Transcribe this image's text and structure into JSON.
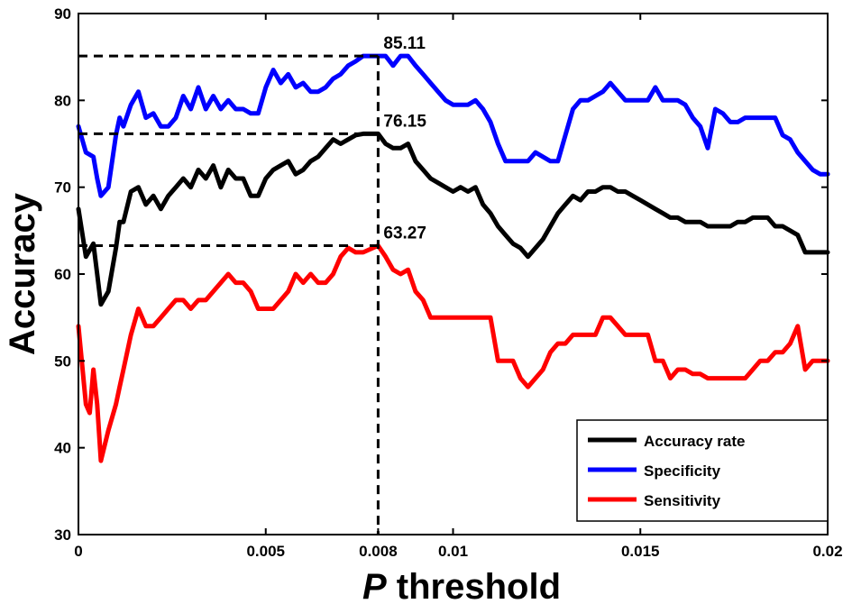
{
  "chart_data": {
    "type": "line",
    "xlabel_italic": "P",
    "xlabel_rest": " threshold",
    "ylabel": "Accuracy",
    "xlim": [
      0,
      0.02
    ],
    "ylim": [
      30,
      90
    ],
    "x_ticks": [
      0,
      0.005,
      0.008,
      0.01,
      0.015,
      0.02
    ],
    "x_tick_labels": [
      "0",
      "0.005",
      "0.008",
      "0.01",
      "0.015",
      "0.02"
    ],
    "y_ticks": [
      30,
      40,
      50,
      60,
      70,
      80,
      90
    ],
    "y_tick_labels": [
      "30",
      "40",
      "50",
      "60",
      "70",
      "80",
      "90"
    ],
    "grid": false,
    "legend_position": "bottom-right",
    "annotations": [
      {
        "text": "85.11",
        "x": 0.008,
        "y": 85.11
      },
      {
        "text": "76.15",
        "x": 0.008,
        "y": 76.15
      },
      {
        "text": "63.27",
        "x": 0.008,
        "y": 63.27
      }
    ],
    "series": [
      {
        "name": "Accuracy rate",
        "color": "#000000",
        "points": [
          [
            0,
            67.5
          ],
          [
            0.0002,
            62
          ],
          [
            0.0004,
            63.5
          ],
          [
            0.0005,
            60
          ],
          [
            0.0006,
            56.5
          ],
          [
            0.0008,
            58
          ],
          [
            0.001,
            63
          ],
          [
            0.0011,
            66
          ],
          [
            0.0012,
            66
          ],
          [
            0.0014,
            69.5
          ],
          [
            0.0016,
            70
          ],
          [
            0.0018,
            68
          ],
          [
            0.002,
            69
          ],
          [
            0.0022,
            67.5
          ],
          [
            0.0024,
            69
          ],
          [
            0.0026,
            70
          ],
          [
            0.0028,
            71
          ],
          [
            0.003,
            70
          ],
          [
            0.0032,
            72
          ],
          [
            0.0034,
            71
          ],
          [
            0.0036,
            72.5
          ],
          [
            0.0038,
            70
          ],
          [
            0.004,
            72
          ],
          [
            0.0042,
            71
          ],
          [
            0.0044,
            71
          ],
          [
            0.0046,
            69
          ],
          [
            0.0048,
            69
          ],
          [
            0.005,
            71
          ],
          [
            0.0052,
            72
          ],
          [
            0.0054,
            72.5
          ],
          [
            0.0056,
            73
          ],
          [
            0.0058,
            71.5
          ],
          [
            0.006,
            72
          ],
          [
            0.0062,
            73
          ],
          [
            0.0064,
            73.5
          ],
          [
            0.0066,
            74.5
          ],
          [
            0.0068,
            75.5
          ],
          [
            0.007,
            75
          ],
          [
            0.0072,
            75.5
          ],
          [
            0.0074,
            76
          ],
          [
            0.0076,
            76.15
          ],
          [
            0.008,
            76.15
          ],
          [
            0.0082,
            75
          ],
          [
            0.0084,
            74.5
          ],
          [
            0.0086,
            74.5
          ],
          [
            0.0088,
            75
          ],
          [
            0.009,
            73
          ],
          [
            0.0092,
            72
          ],
          [
            0.0094,
            71
          ],
          [
            0.0096,
            70.5
          ],
          [
            0.0098,
            70
          ],
          [
            0.01,
            69.5
          ],
          [
            0.0102,
            70
          ],
          [
            0.0104,
            69.5
          ],
          [
            0.0106,
            70
          ],
          [
            0.0108,
            68
          ],
          [
            0.011,
            67
          ],
          [
            0.0112,
            65.5
          ],
          [
            0.0114,
            64.5
          ],
          [
            0.0116,
            63.5
          ],
          [
            0.0118,
            63
          ],
          [
            0.012,
            62
          ],
          [
            0.0122,
            63
          ],
          [
            0.0124,
            64
          ],
          [
            0.0126,
            65.5
          ],
          [
            0.0128,
            67
          ],
          [
            0.013,
            68
          ],
          [
            0.0132,
            69
          ],
          [
            0.0134,
            68.5
          ],
          [
            0.0136,
            69.5
          ],
          [
            0.0138,
            69.5
          ],
          [
            0.014,
            70
          ],
          [
            0.0142,
            70
          ],
          [
            0.0144,
            69.5
          ],
          [
            0.0146,
            69.5
          ],
          [
            0.0148,
            69
          ],
          [
            0.015,
            68.5
          ],
          [
            0.0152,
            68
          ],
          [
            0.0154,
            67.5
          ],
          [
            0.0156,
            67
          ],
          [
            0.0158,
            66.5
          ],
          [
            0.016,
            66.5
          ],
          [
            0.0162,
            66
          ],
          [
            0.0164,
            66
          ],
          [
            0.0166,
            66
          ],
          [
            0.0168,
            65.5
          ],
          [
            0.017,
            65.5
          ],
          [
            0.0172,
            65.5
          ],
          [
            0.0174,
            65.5
          ],
          [
            0.0176,
            66
          ],
          [
            0.0178,
            66
          ],
          [
            0.018,
            66.5
          ],
          [
            0.0182,
            66.5
          ],
          [
            0.0184,
            66.5
          ],
          [
            0.0186,
            65.5
          ],
          [
            0.0188,
            65.5
          ],
          [
            0.019,
            65
          ],
          [
            0.0192,
            64.5
          ],
          [
            0.0194,
            62.5
          ],
          [
            0.0196,
            62.5
          ],
          [
            0.0198,
            62.5
          ],
          [
            0.02,
            62.5
          ]
        ]
      },
      {
        "name": "Specificity",
        "color": "#0000ff",
        "points": [
          [
            0,
            77
          ],
          [
            0.0002,
            74
          ],
          [
            0.0004,
            73.5
          ],
          [
            0.0005,
            71
          ],
          [
            0.0006,
            69
          ],
          [
            0.0008,
            70
          ],
          [
            0.001,
            76
          ],
          [
            0.0011,
            78
          ],
          [
            0.0012,
            77
          ],
          [
            0.0014,
            79.5
          ],
          [
            0.0016,
            81
          ],
          [
            0.0018,
            78
          ],
          [
            0.002,
            78.5
          ],
          [
            0.0022,
            77
          ],
          [
            0.0024,
            77
          ],
          [
            0.0026,
            78
          ],
          [
            0.0028,
            80.5
          ],
          [
            0.003,
            79
          ],
          [
            0.0032,
            81.5
          ],
          [
            0.0034,
            79
          ],
          [
            0.0036,
            80.5
          ],
          [
            0.0038,
            79
          ],
          [
            0.004,
            80
          ],
          [
            0.0042,
            79
          ],
          [
            0.0044,
            79
          ],
          [
            0.0046,
            78.5
          ],
          [
            0.0048,
            78.5
          ],
          [
            0.005,
            81.5
          ],
          [
            0.0052,
            83.5
          ],
          [
            0.0054,
            82
          ],
          [
            0.0056,
            83
          ],
          [
            0.0058,
            81.5
          ],
          [
            0.006,
            82
          ],
          [
            0.0062,
            81
          ],
          [
            0.0064,
            81
          ],
          [
            0.0066,
            81.5
          ],
          [
            0.0068,
            82.5
          ],
          [
            0.007,
            83
          ],
          [
            0.0072,
            84
          ],
          [
            0.0074,
            84.5
          ],
          [
            0.0076,
            85.11
          ],
          [
            0.008,
            85.11
          ],
          [
            0.0082,
            85.11
          ],
          [
            0.0084,
            84
          ],
          [
            0.0086,
            85.11
          ],
          [
            0.0088,
            85.11
          ],
          [
            0.009,
            84
          ],
          [
            0.0092,
            83
          ],
          [
            0.0094,
            82
          ],
          [
            0.0096,
            81
          ],
          [
            0.0098,
            80
          ],
          [
            0.01,
            79.5
          ],
          [
            0.0102,
            79.5
          ],
          [
            0.0104,
            79.5
          ],
          [
            0.0106,
            80
          ],
          [
            0.0108,
            79
          ],
          [
            0.011,
            77.5
          ],
          [
            0.0112,
            75
          ],
          [
            0.0114,
            73
          ],
          [
            0.0116,
            73
          ],
          [
            0.0118,
            73
          ],
          [
            0.012,
            73
          ],
          [
            0.0122,
            74
          ],
          [
            0.0124,
            73.5
          ],
          [
            0.0126,
            73
          ],
          [
            0.0128,
            73
          ],
          [
            0.013,
            76
          ],
          [
            0.0132,
            79
          ],
          [
            0.0134,
            80
          ],
          [
            0.0136,
            80
          ],
          [
            0.0138,
            80.5
          ],
          [
            0.014,
            81
          ],
          [
            0.0142,
            82
          ],
          [
            0.0144,
            81
          ],
          [
            0.0146,
            80
          ],
          [
            0.0148,
            80
          ],
          [
            0.015,
            80
          ],
          [
            0.0152,
            80
          ],
          [
            0.0154,
            81.5
          ],
          [
            0.0156,
            80
          ],
          [
            0.0158,
            80
          ],
          [
            0.016,
            80
          ],
          [
            0.0162,
            79.5
          ],
          [
            0.0164,
            78
          ],
          [
            0.0166,
            77
          ],
          [
            0.0168,
            74.5
          ],
          [
            0.017,
            79
          ],
          [
            0.0172,
            78.5
          ],
          [
            0.0174,
            77.5
          ],
          [
            0.0176,
            77.5
          ],
          [
            0.0178,
            78
          ],
          [
            0.018,
            78
          ],
          [
            0.0182,
            78
          ],
          [
            0.0184,
            78
          ],
          [
            0.0186,
            78
          ],
          [
            0.0188,
            76
          ],
          [
            0.019,
            75.5
          ],
          [
            0.0192,
            74
          ],
          [
            0.0194,
            73
          ],
          [
            0.0196,
            72
          ],
          [
            0.0198,
            71.5
          ],
          [
            0.02,
            71.5
          ]
        ]
      },
      {
        "name": "Sensitivity",
        "color": "#ff0000",
        "points": [
          [
            0,
            54
          ],
          [
            0.0002,
            45
          ],
          [
            0.0003,
            44
          ],
          [
            0.0004,
            49
          ],
          [
            0.0005,
            45
          ],
          [
            0.0006,
            38.5
          ],
          [
            0.0008,
            42
          ],
          [
            0.001,
            45
          ],
          [
            0.0011,
            47
          ],
          [
            0.0012,
            49
          ],
          [
            0.0014,
            53
          ],
          [
            0.0016,
            56
          ],
          [
            0.0018,
            54
          ],
          [
            0.002,
            54
          ],
          [
            0.0022,
            55
          ],
          [
            0.0024,
            56
          ],
          [
            0.0026,
            57
          ],
          [
            0.0028,
            57
          ],
          [
            0.003,
            56
          ],
          [
            0.0032,
            57
          ],
          [
            0.0034,
            57
          ],
          [
            0.0036,
            58
          ],
          [
            0.0038,
            59
          ],
          [
            0.004,
            60
          ],
          [
            0.0042,
            59
          ],
          [
            0.0044,
            59
          ],
          [
            0.0046,
            58
          ],
          [
            0.0048,
            56
          ],
          [
            0.005,
            56
          ],
          [
            0.0052,
            56
          ],
          [
            0.0054,
            57
          ],
          [
            0.0056,
            58
          ],
          [
            0.0058,
            60
          ],
          [
            0.006,
            59
          ],
          [
            0.0062,
            60
          ],
          [
            0.0064,
            59
          ],
          [
            0.0066,
            59
          ],
          [
            0.0068,
            60
          ],
          [
            0.007,
            62
          ],
          [
            0.0072,
            63
          ],
          [
            0.0074,
            62.5
          ],
          [
            0.0076,
            62.5
          ],
          [
            0.008,
            63.27
          ],
          [
            0.0082,
            62
          ],
          [
            0.0084,
            60.5
          ],
          [
            0.0086,
            60
          ],
          [
            0.0088,
            60.5
          ],
          [
            0.009,
            58
          ],
          [
            0.0092,
            57
          ],
          [
            0.0094,
            55
          ],
          [
            0.0096,
            55
          ],
          [
            0.0098,
            55
          ],
          [
            0.01,
            55
          ],
          [
            0.0102,
            55
          ],
          [
            0.0104,
            55
          ],
          [
            0.0106,
            55
          ],
          [
            0.0108,
            55
          ],
          [
            0.011,
            55
          ],
          [
            0.0112,
            50
          ],
          [
            0.0114,
            50
          ],
          [
            0.0116,
            50
          ],
          [
            0.0118,
            48
          ],
          [
            0.012,
            47
          ],
          [
            0.0122,
            48
          ],
          [
            0.0124,
            49
          ],
          [
            0.0126,
            51
          ],
          [
            0.0128,
            52
          ],
          [
            0.013,
            52
          ],
          [
            0.0132,
            53
          ],
          [
            0.0134,
            53
          ],
          [
            0.0136,
            53
          ],
          [
            0.0138,
            53
          ],
          [
            0.014,
            55
          ],
          [
            0.0142,
            55
          ],
          [
            0.0144,
            54
          ],
          [
            0.0146,
            53
          ],
          [
            0.0148,
            53
          ],
          [
            0.015,
            53
          ],
          [
            0.0152,
            53
          ],
          [
            0.0154,
            50
          ],
          [
            0.0156,
            50
          ],
          [
            0.0158,
            48
          ],
          [
            0.016,
            49
          ],
          [
            0.0162,
            49
          ],
          [
            0.0164,
            48.5
          ],
          [
            0.0166,
            48.5
          ],
          [
            0.0168,
            48
          ],
          [
            0.017,
            48
          ],
          [
            0.0172,
            48
          ],
          [
            0.0174,
            48
          ],
          [
            0.0176,
            48
          ],
          [
            0.0178,
            48
          ],
          [
            0.018,
            49
          ],
          [
            0.0182,
            50
          ],
          [
            0.0184,
            50
          ],
          [
            0.0186,
            51
          ],
          [
            0.0188,
            51
          ],
          [
            0.019,
            52
          ],
          [
            0.0192,
            54
          ],
          [
            0.0194,
            49
          ],
          [
            0.0196,
            50
          ],
          [
            0.0198,
            50
          ],
          [
            0.02,
            50
          ]
        ]
      }
    ]
  }
}
